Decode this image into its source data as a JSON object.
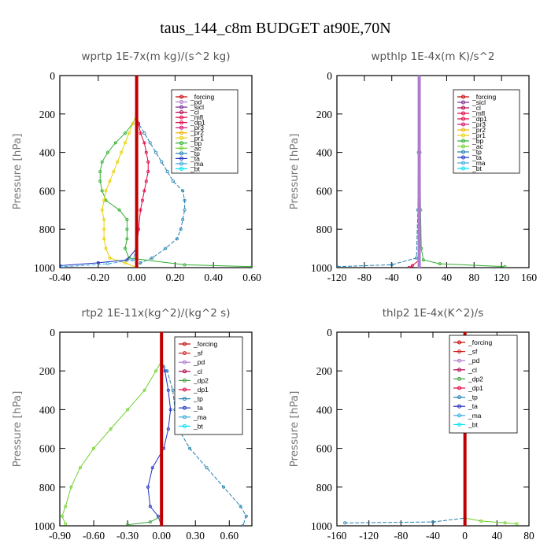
{
  "title": "taus_144_c8m  BUDGET at90E,70N",
  "colors": {
    "forcing": "#c00000",
    "pd": "#b07ad0",
    "sicl": "#7a2c90",
    "cl": "#b0004a",
    "mfl": "#e00040",
    "dp1": "#e00040",
    "pr3": "#d01070",
    "pr2": "#f0b000",
    "pr1": "#e8d000",
    "bp": "#30b030",
    "ac": "#70d030",
    "tp": "#2080b0",
    "ta": "#2030c0",
    "ma": "#40a8e0",
    "bt": "#00e0f0",
    "sf": "#d02020",
    "dp2": "#40a040"
  },
  "chart_data": [
    {
      "type": "line",
      "title": "wprtp   1E-7x(m kg)/(s^2 kg)",
      "ylabel": "Pressure [hPa]",
      "xlim": [
        -0.4,
        0.6
      ],
      "ylim": [
        1000,
        0
      ],
      "xticks": [
        "-0.40",
        "-0.20",
        "0.00",
        "0.20",
        "0.40",
        "0.60"
      ],
      "yticks": [
        "0",
        "200",
        "400",
        "600",
        "800",
        "1000"
      ],
      "legend": [
        "_forcing",
        "_pd",
        "_sicl",
        "_cl",
        "_mfl",
        "_dp1",
        "_pr3",
        "_pr2",
        "_pr1",
        "_bp",
        "_ac",
        "_tp",
        "_ta",
        "_ma",
        "_bt"
      ],
      "series": [
        {
          "name": "_tp",
          "color": "tp",
          "points": [
            [
              0,
              0
            ],
            [
              0,
              200
            ],
            [
              0.01,
              250
            ],
            [
              0.04,
              300
            ],
            [
              0.07,
              350
            ],
            [
              0.1,
              400
            ],
            [
              0.13,
              450
            ],
            [
              0.16,
              500
            ],
            [
              0.19,
              550
            ],
            [
              0.24,
              600
            ],
            [
              0.25,
              650
            ],
            [
              0.25,
              700
            ],
            [
              0.24,
              750
            ],
            [
              0.23,
              800
            ],
            [
              0.21,
              850
            ],
            [
              0.15,
              900
            ],
            [
              0.08,
              950
            ],
            [
              0.02,
              975
            ],
            [
              0,
              1000
            ]
          ]
        },
        {
          "name": "_bp",
          "color": "bp",
          "points": [
            [
              0,
              0
            ],
            [
              0,
              200
            ],
            [
              -0.02,
              250
            ],
            [
              -0.06,
              300
            ],
            [
              -0.11,
              350
            ],
            [
              -0.15,
              400
            ],
            [
              -0.18,
              450
            ],
            [
              -0.19,
              500
            ],
            [
              -0.19,
              550
            ],
            [
              -0.18,
              600
            ],
            [
              -0.16,
              650
            ],
            [
              -0.09,
              700
            ],
            [
              -0.05,
              750
            ],
            [
              -0.05,
              800
            ],
            [
              -0.05,
              850
            ],
            [
              -0.06,
              900
            ],
            [
              -0.04,
              950
            ],
            [
              0.25,
              985
            ],
            [
              0.6,
              995
            ]
          ]
        },
        {
          "name": "_pr1",
          "color": "pr1",
          "points": [
            [
              0,
              0
            ],
            [
              0,
              200
            ],
            [
              -0.02,
              250
            ],
            [
              -0.04,
              300
            ],
            [
              -0.06,
              350
            ],
            [
              -0.08,
              400
            ],
            [
              -0.1,
              450
            ],
            [
              -0.12,
              500
            ],
            [
              -0.14,
              550
            ],
            [
              -0.16,
              600
            ],
            [
              -0.17,
              650
            ],
            [
              -0.18,
              700
            ],
            [
              -0.17,
              750
            ],
            [
              -0.17,
              800
            ],
            [
              -0.17,
              850
            ],
            [
              -0.16,
              900
            ],
            [
              -0.14,
              950
            ],
            [
              -0.06,
              975
            ],
            [
              0,
              1000
            ]
          ]
        },
        {
          "name": "_mfl",
          "color": "mfl",
          "points": [
            [
              0,
              0
            ],
            [
              0,
              200
            ],
            [
              0.01,
              250
            ],
            [
              0.02,
              300
            ],
            [
              0.04,
              350
            ],
            [
              0.05,
              400
            ],
            [
              0.06,
              450
            ],
            [
              0.06,
              500
            ],
            [
              0.05,
              550
            ],
            [
              0.04,
              600
            ],
            [
              0.03,
              650
            ],
            [
              0.02,
              700
            ],
            [
              0.01,
              800
            ],
            [
              0,
              900
            ],
            [
              0,
              1000
            ]
          ]
        },
        {
          "name": "_ta",
          "color": "ta",
          "points": [
            [
              0,
              0
            ],
            [
              0,
              900
            ],
            [
              -0.05,
              960
            ],
            [
              -0.2,
              975
            ],
            [
              -0.4,
              990
            ]
          ]
        },
        {
          "name": "_ma",
          "color": "ma",
          "points": [
            [
              0,
              900
            ],
            [
              -0.02,
              960
            ],
            [
              -0.15,
              980
            ],
            [
              -0.38,
              995
            ]
          ]
        },
        {
          "name": "_forcing",
          "color": "forcing",
          "points": [
            [
              0,
              0
            ],
            [
              0,
              1000
            ]
          ]
        }
      ]
    },
    {
      "type": "line",
      "title": "wpthlp   1E-4x(m K)/s^2",
      "ylabel": "Pressure [hPa]",
      "xlim": [
        -120,
        160
      ],
      "ylim": [
        1000,
        0
      ],
      "xticks": [
        "-120",
        "-80",
        "-40",
        "0",
        "40",
        "80",
        "120",
        "160"
      ],
      "yticks": [
        "0",
        "200",
        "400",
        "600",
        "800",
        "1000"
      ],
      "legend": [
        "_forcing",
        "_sicl",
        "_cl",
        "_mfl",
        "_dp1",
        "_pr3",
        "_pr2",
        "_pr1",
        "_bp",
        "_ac",
        "_tp",
        "_ta",
        "_ma",
        "_bt"
      ],
      "series": [
        {
          "name": "_bp",
          "color": "bp",
          "points": [
            [
              0,
              0
            ],
            [
              1,
              400
            ],
            [
              2,
              700
            ],
            [
              3,
              900
            ],
            [
              6,
              960
            ],
            [
              30,
              980
            ],
            [
              125,
              995
            ]
          ]
        },
        {
          "name": "_tp",
          "color": "tp",
          "points": [
            [
              0,
              0
            ],
            [
              -1,
              400
            ],
            [
              -2,
              700
            ],
            [
              -4,
              950
            ],
            [
              -40,
              985
            ],
            [
              -120,
              995
            ]
          ]
        },
        {
          "name": "_mfl",
          "color": "mfl",
          "points": [
            [
              0,
              0
            ],
            [
              0,
              960
            ],
            [
              -10,
              990
            ],
            [
              -15,
              1000
            ]
          ]
        },
        {
          "name": "_pd",
          "color": "pd",
          "points": [
            [
              0,
              0
            ],
            [
              0,
              1000
            ]
          ]
        }
      ]
    },
    {
      "type": "line",
      "title": "rtp2   1E-11x(kg^2)/(kg^2 s)",
      "ylabel": "Pressure [hPa]",
      "xlim": [
        -0.9,
        0.8
      ],
      "ylim": [
        1000,
        0
      ],
      "xticks": [
        "-0.90",
        "-0.60",
        "-0.30",
        "0.00",
        "0.30",
        "0.60"
      ],
      "yticks": [
        "0",
        "200",
        "400",
        "600",
        "800",
        "1000"
      ],
      "legend": [
        "_forcing",
        "_sf",
        "_pd",
        "_cl",
        "_dp2",
        "_dp1",
        "_tp",
        "_ta",
        "_ma",
        "_bt"
      ],
      "series": [
        {
          "name": "_tp",
          "color": "tp",
          "points": [
            [
              0,
              0
            ],
            [
              0,
              150
            ],
            [
              0.05,
              200
            ],
            [
              0.1,
              300
            ],
            [
              0.12,
              400
            ],
            [
              0.15,
              500
            ],
            [
              0.25,
              600
            ],
            [
              0.4,
              700
            ],
            [
              0.55,
              800
            ],
            [
              0.7,
              900
            ],
            [
              0.75,
              950
            ],
            [
              0.72,
              1000
            ]
          ]
        },
        {
          "name": "_ta",
          "color": "ta",
          "points": [
            [
              0,
              0
            ],
            [
              0,
              150
            ],
            [
              0.03,
              200
            ],
            [
              0.06,
              300
            ],
            [
              0.08,
              400
            ],
            [
              0.06,
              500
            ],
            [
              0.02,
              600
            ],
            [
              -0.08,
              700
            ],
            [
              -0.12,
              800
            ],
            [
              -0.1,
              900
            ],
            [
              -0.03,
              950
            ],
            [
              0,
              1000
            ]
          ]
        },
        {
          "name": "_ac",
          "color": "ac",
          "points": [
            [
              0,
              0
            ],
            [
              0,
              150
            ],
            [
              -0.05,
              200
            ],
            [
              -0.15,
              300
            ],
            [
              -0.3,
              400
            ],
            [
              -0.45,
              500
            ],
            [
              -0.6,
              600
            ],
            [
              -0.72,
              700
            ],
            [
              -0.8,
              800
            ],
            [
              -0.85,
              900
            ],
            [
              -0.88,
              950
            ],
            [
              -0.85,
              990
            ]
          ]
        },
        {
          "name": "_dp2",
          "color": "dp2",
          "points": [
            [
              0,
              0
            ],
            [
              0,
              950
            ],
            [
              -0.1,
              980
            ],
            [
              -0.3,
              995
            ]
          ]
        },
        {
          "name": "_forcing",
          "color": "forcing",
          "points": [
            [
              0,
              0
            ],
            [
              0,
              1000
            ]
          ]
        }
      ]
    },
    {
      "type": "line",
      "title": "thlp2   1E-4x(K^2)/s",
      "ylabel": "Pressure [hPa]",
      "xlim": [
        -160,
        80
      ],
      "ylim": [
        1000,
        0
      ],
      "xticks": [
        "-160",
        "-120",
        "-80",
        "-40",
        "0",
        "40",
        "80"
      ],
      "yticks": [
        "0",
        "200",
        "400",
        "600",
        "800",
        "1000"
      ],
      "legend": [
        "_forcing",
        "_sf",
        "_pd",
        "_cl",
        "_dp2",
        "_dp1",
        "_tp",
        "_ta",
        "_ma",
        "_bt"
      ],
      "series": [
        {
          "name": "_tp",
          "color": "tp",
          "points": [
            [
              0,
              0
            ],
            [
              0,
              960
            ],
            [
              -40,
              980
            ],
            [
              -150,
              985
            ]
          ]
        },
        {
          "name": "_ac",
          "color": "ac",
          "points": [
            [
              0,
              0
            ],
            [
              0,
              960
            ],
            [
              20,
              975
            ],
            [
              50,
              985
            ],
            [
              65,
              990
            ]
          ]
        },
        {
          "name": "_forcing",
          "color": "forcing",
          "points": [
            [
              0,
              0
            ],
            [
              0,
              1000
            ]
          ]
        }
      ]
    }
  ]
}
